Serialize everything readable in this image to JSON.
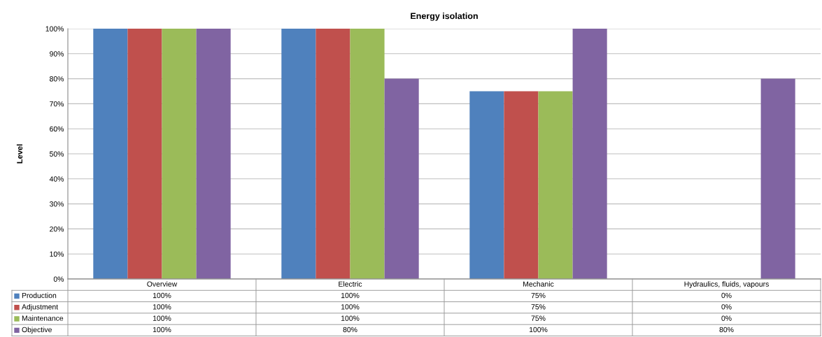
{
  "chart_data": {
    "type": "bar",
    "title": "Energy isolation",
    "ylabel": "Level",
    "categories": [
      "Overview",
      "Electric",
      "Mechanic",
      "Hydraulics, fluids, vapours"
    ],
    "series": [
      {
        "name": "Production",
        "color": "#4f81bd",
        "values": [
          100,
          100,
          75,
          0
        ]
      },
      {
        "name": "Adjustment",
        "color": "#c0504d",
        "values": [
          100,
          100,
          75,
          0
        ]
      },
      {
        "name": "Maintenance",
        "color": "#9bbb59",
        "values": [
          100,
          100,
          75,
          0
        ]
      },
      {
        "name": "Objective",
        "color": "#8064a2",
        "values": [
          100,
          80,
          100,
          80
        ]
      }
    ],
    "ylim": [
      0,
      100
    ],
    "yticks": [
      {
        "value": 0,
        "label": "0%"
      },
      {
        "value": 10,
        "label": "10%"
      },
      {
        "value": 20,
        "label": "20%"
      },
      {
        "value": 30,
        "label": "30%"
      },
      {
        "value": 40,
        "label": "40%"
      },
      {
        "value": 50,
        "label": "50%"
      },
      {
        "value": 60,
        "label": "60%"
      },
      {
        "value": 70,
        "label": "70%"
      },
      {
        "value": 80,
        "label": "80%"
      },
      {
        "value": 90,
        "label": "90%"
      },
      {
        "value": 100,
        "label": "100%"
      }
    ],
    "value_labels": [
      [
        "100%",
        "100%",
        "75%",
        "0%"
      ],
      [
        "100%",
        "100%",
        "75%",
        "0%"
      ],
      [
        "100%",
        "100%",
        "75%",
        "0%"
      ],
      [
        "100%",
        "80%",
        "100%",
        "80%"
      ]
    ],
    "grid": "y",
    "legend": "bottom"
  }
}
